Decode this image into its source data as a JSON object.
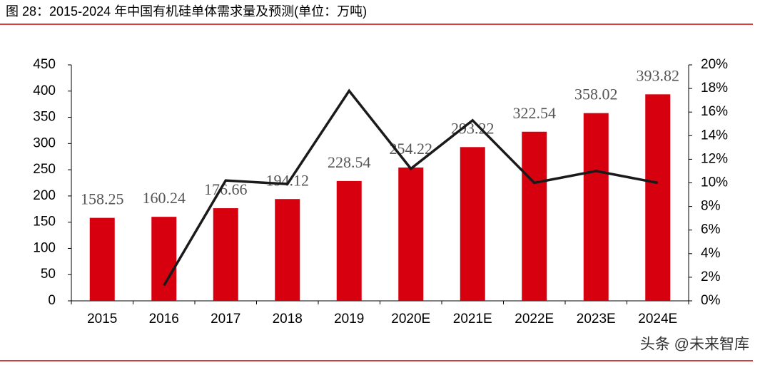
{
  "chart_data": {
    "type": "bar-line",
    "title": "图 28：2015-2024 年中国有机硅单体需求量及预测(单位：万吨)",
    "categories": [
      "2015",
      "2016",
      "2017",
      "2018",
      "2019",
      "2020E",
      "2021E",
      "2022E",
      "2023E",
      "2024E"
    ],
    "series": [
      {
        "type": "bar",
        "color": "#d7000f",
        "values": [
          158.25,
          160.24,
          176.66,
          194.12,
          228.54,
          254.22,
          293.22,
          322.54,
          358.02,
          393.82
        ]
      },
      {
        "type": "line",
        "axis": "y2",
        "color": "#1a1a1a",
        "values": [
          null,
          1.3,
          10.2,
          9.9,
          17.8,
          11.2,
          15.3,
          10.0,
          11.0,
          10.0
        ]
      }
    ],
    "ylim": [
      0,
      450
    ],
    "yticks": [
      0,
      50,
      100,
      150,
      200,
      250,
      300,
      350,
      400,
      450
    ],
    "y2lim": [
      0,
      20
    ],
    "y2ticks": [
      {
        "value": 0,
        "label": "0%"
      },
      {
        "value": 2,
        "label": "2%"
      },
      {
        "value": 4,
        "label": "4%"
      },
      {
        "value": 6,
        "label": "6%"
      },
      {
        "value": 8,
        "label": "8%"
      },
      {
        "value": 10,
        "label": "10%"
      },
      {
        "value": 12,
        "label": "12%"
      },
      {
        "value": 14,
        "label": "14%"
      },
      {
        "value": 16,
        "label": "16%"
      },
      {
        "value": 18,
        "label": "18%"
      },
      {
        "value": 20,
        "label": "20%"
      }
    ]
  },
  "watermark": "头条 @未来智库"
}
